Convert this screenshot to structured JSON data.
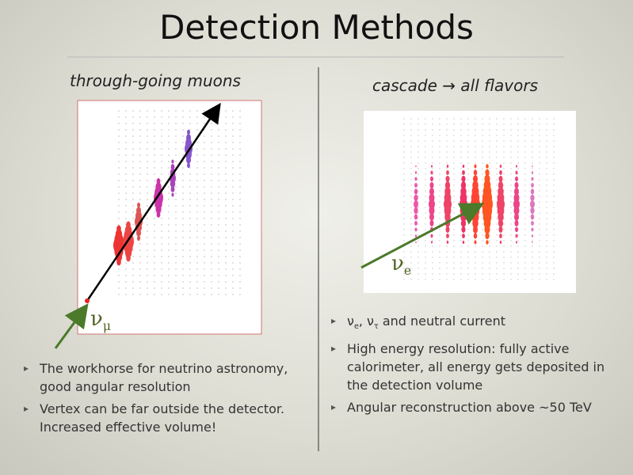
{
  "title": "Detection Methods",
  "left": {
    "heading": "through-going muons",
    "label": [
      "ν",
      "μ"
    ],
    "bullets": [
      "The workhorse for neutrino astronomy, good angular resolution",
      "Vertex can be far outside the detector. Increased effective volume!"
    ]
  },
  "right": {
    "heading": "cascade → all flavors",
    "label": [
      "ν",
      "e"
    ],
    "bullets": [
      [
        "ν",
        "e",
        ", ",
        "ν",
        "τ",
        " and neutral current"
      ],
      "High energy resolution: fully active calorimeter, all energy gets deposited in the detection volume",
      "Angular reconstruction above ~50 TeV"
    ]
  }
}
